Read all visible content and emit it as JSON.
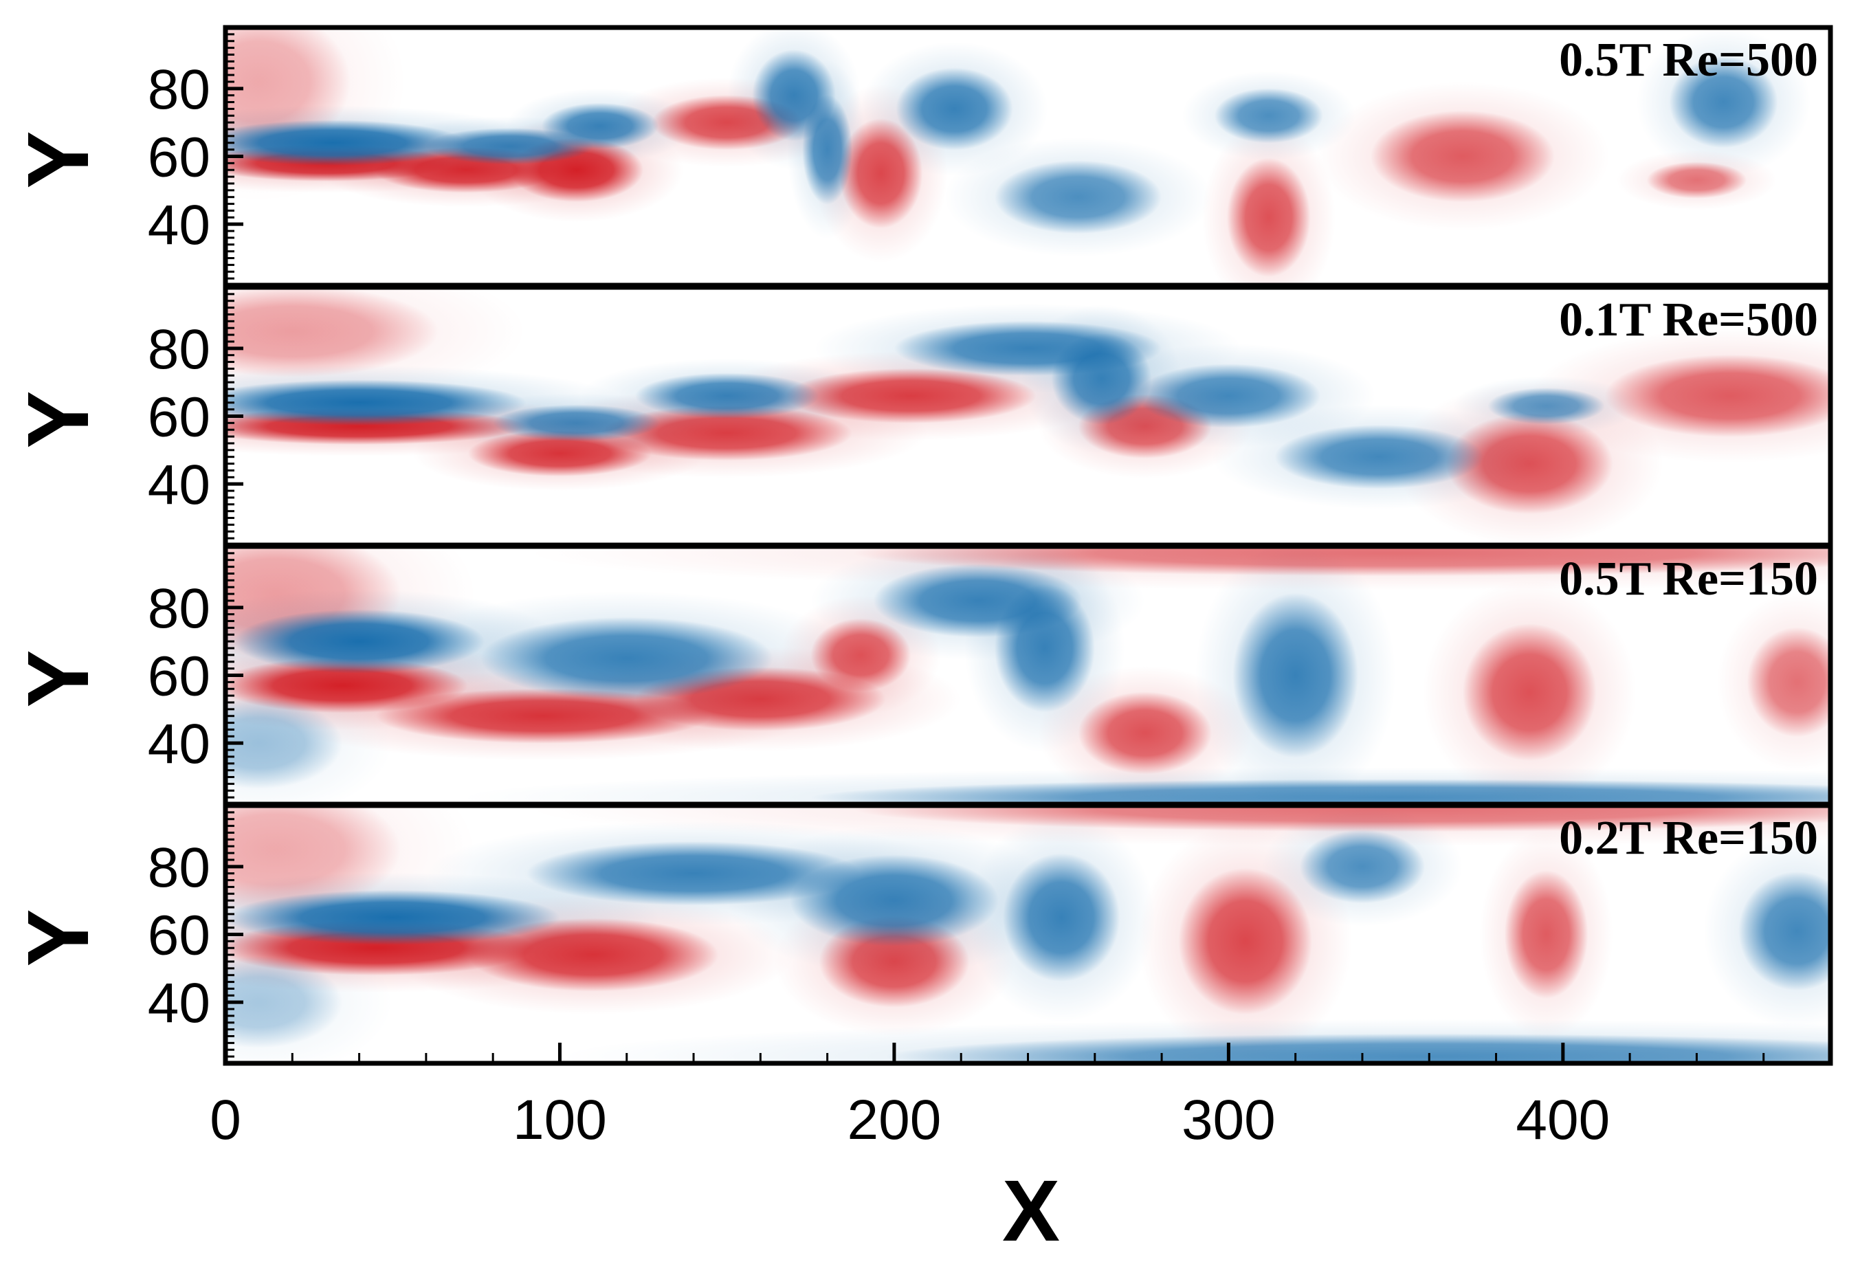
{
  "chart_data": {
    "type": "heatmap",
    "title": "",
    "xlabel": "X",
    "ylabel": "Y",
    "xlim": [
      0,
      480
    ],
    "ylim": [
      22,
      98
    ],
    "x_ticks": [
      0,
      100,
      200,
      300,
      400
    ],
    "y_ticks": [
      40,
      60,
      80
    ],
    "colormap": {
      "negative": "#1a6fae",
      "neutral": "#ffffff",
      "positive": "#d42027"
    },
    "panels": [
      {
        "label": "0.5T Re=500",
        "vortices": [
          {
            "sign": 1,
            "x": 30,
            "y": 58,
            "rx": 30,
            "ry": 4,
            "s": 1.0
          },
          {
            "sign": 1,
            "x": 72,
            "y": 56,
            "rx": 22,
            "ry": 5,
            "s": 0.95
          },
          {
            "sign": 1,
            "x": 105,
            "y": 56,
            "rx": 16,
            "ry": 7,
            "s": 1.0
          },
          {
            "sign": 1,
            "x": 150,
            "y": 70,
            "rx": 18,
            "ry": 6,
            "s": 0.8
          },
          {
            "sign": 1,
            "x": 196,
            "y": 55,
            "rx": 10,
            "ry": 12,
            "s": 0.8
          },
          {
            "sign": 1,
            "x": 312,
            "y": 42,
            "rx": 10,
            "ry": 13,
            "s": 0.75
          },
          {
            "sign": 1,
            "x": 370,
            "y": 60,
            "rx": 22,
            "ry": 10,
            "s": 0.7
          },
          {
            "sign": 1,
            "x": 440,
            "y": 53,
            "rx": 12,
            "ry": 4,
            "s": 0.6
          },
          {
            "sign": 1,
            "x": 10,
            "y": 82,
            "rx": 22,
            "ry": 16,
            "s": 0.35
          },
          {
            "sign": -1,
            "x": 32,
            "y": 64,
            "rx": 32,
            "ry": 5,
            "s": 1.0
          },
          {
            "sign": -1,
            "x": 85,
            "y": 63,
            "rx": 20,
            "ry": 4,
            "s": 0.85
          },
          {
            "sign": -1,
            "x": 112,
            "y": 69,
            "rx": 14,
            "ry": 5,
            "s": 0.85
          },
          {
            "sign": -1,
            "x": 170,
            "y": 78,
            "rx": 10,
            "ry": 10,
            "s": 0.85
          },
          {
            "sign": -1,
            "x": 180,
            "y": 62,
            "rx": 6,
            "ry": 12,
            "s": 0.8
          },
          {
            "sign": -1,
            "x": 218,
            "y": 74,
            "rx": 14,
            "ry": 9,
            "s": 0.85
          },
          {
            "sign": -1,
            "x": 255,
            "y": 48,
            "rx": 20,
            "ry": 8,
            "s": 0.75
          },
          {
            "sign": -1,
            "x": 312,
            "y": 72,
            "rx": 13,
            "ry": 6,
            "s": 0.75
          },
          {
            "sign": -1,
            "x": 448,
            "y": 76,
            "rx": 13,
            "ry": 10,
            "s": 0.8
          }
        ]
      },
      {
        "label": "0.1T Re=500",
        "vortices": [
          {
            "sign": 1,
            "x": 40,
            "y": 57,
            "rx": 40,
            "ry": 4,
            "s": 1.0
          },
          {
            "sign": 1,
            "x": 100,
            "y": 49,
            "rx": 22,
            "ry": 5,
            "s": 0.9
          },
          {
            "sign": 1,
            "x": 150,
            "y": 55,
            "rx": 30,
            "ry": 6,
            "s": 0.85
          },
          {
            "sign": 1,
            "x": 205,
            "y": 66,
            "rx": 30,
            "ry": 6,
            "s": 0.85
          },
          {
            "sign": 1,
            "x": 275,
            "y": 57,
            "rx": 16,
            "ry": 7,
            "s": 0.75
          },
          {
            "sign": 1,
            "x": 390,
            "y": 46,
            "rx": 20,
            "ry": 11,
            "s": 0.75
          },
          {
            "sign": 1,
            "x": 450,
            "y": 66,
            "rx": 30,
            "ry": 9,
            "s": 0.7
          },
          {
            "sign": 1,
            "x": 20,
            "y": 85,
            "rx": 35,
            "ry": 10,
            "s": 0.4
          },
          {
            "sign": -1,
            "x": 40,
            "y": 64,
            "rx": 40,
            "ry": 5,
            "s": 1.0
          },
          {
            "sign": -1,
            "x": 105,
            "y": 58,
            "rx": 20,
            "ry": 4,
            "s": 0.8
          },
          {
            "sign": -1,
            "x": 150,
            "y": 66,
            "rx": 22,
            "ry": 5,
            "s": 0.85
          },
          {
            "sign": -1,
            "x": 240,
            "y": 80,
            "rx": 32,
            "ry": 6,
            "s": 0.85
          },
          {
            "sign": -1,
            "x": 262,
            "y": 71,
            "rx": 12,
            "ry": 10,
            "s": 0.85
          },
          {
            "sign": -1,
            "x": 300,
            "y": 66,
            "rx": 22,
            "ry": 7,
            "s": 0.8
          },
          {
            "sign": -1,
            "x": 345,
            "y": 48,
            "rx": 25,
            "ry": 7,
            "s": 0.8
          },
          {
            "sign": -1,
            "x": 395,
            "y": 63,
            "rx": 14,
            "ry": 4,
            "s": 0.7
          }
        ]
      },
      {
        "label": "0.5T Re=150",
        "vortices": [
          {
            "sign": 1,
            "x": 35,
            "y": 57,
            "rx": 30,
            "ry": 6,
            "s": 1.0
          },
          {
            "sign": 1,
            "x": 95,
            "y": 48,
            "rx": 40,
            "ry": 6,
            "s": 0.9
          },
          {
            "sign": 1,
            "x": 160,
            "y": 53,
            "rx": 30,
            "ry": 7,
            "s": 0.85
          },
          {
            "sign": 1,
            "x": 190,
            "y": 66,
            "rx": 12,
            "ry": 8,
            "s": 0.75
          },
          {
            "sign": 1,
            "x": 275,
            "y": 43,
            "rx": 16,
            "ry": 9,
            "s": 0.75
          },
          {
            "sign": 1,
            "x": 390,
            "y": 55,
            "rx": 16,
            "ry": 15,
            "s": 0.75
          },
          {
            "sign": 1,
            "x": 470,
            "y": 58,
            "rx": 12,
            "ry": 12,
            "s": 0.6
          },
          {
            "sign": 1,
            "x": 350,
            "y": 96,
            "rx": 130,
            "ry": 5,
            "s": 0.6
          },
          {
            "sign": 1,
            "x": 15,
            "y": 84,
            "rx": 30,
            "ry": 14,
            "s": 0.4
          },
          {
            "sign": -1,
            "x": 40,
            "y": 70,
            "rx": 30,
            "ry": 7,
            "s": 1.0
          },
          {
            "sign": -1,
            "x": 120,
            "y": 65,
            "rx": 35,
            "ry": 9,
            "s": 0.85
          },
          {
            "sign": -1,
            "x": 225,
            "y": 82,
            "rx": 25,
            "ry": 8,
            "s": 0.85
          },
          {
            "sign": -1,
            "x": 245,
            "y": 68,
            "rx": 12,
            "ry": 14,
            "s": 0.85
          },
          {
            "sign": -1,
            "x": 320,
            "y": 60,
            "rx": 15,
            "ry": 18,
            "s": 0.85
          },
          {
            "sign": -1,
            "x": 350,
            "y": 24,
            "rx": 140,
            "ry": 4,
            "s": 0.75
          },
          {
            "sign": -1,
            "x": 10,
            "y": 40,
            "rx": 20,
            "ry": 10,
            "s": 0.4
          }
        ]
      },
      {
        "label": "0.2T Re=150",
        "vortices": [
          {
            "sign": 1,
            "x": 45,
            "y": 56,
            "rx": 38,
            "ry": 6,
            "s": 1.0
          },
          {
            "sign": 1,
            "x": 110,
            "y": 54,
            "rx": 30,
            "ry": 8,
            "s": 0.9
          },
          {
            "sign": 1,
            "x": 200,
            "y": 52,
            "rx": 18,
            "ry": 10,
            "s": 0.8
          },
          {
            "sign": 1,
            "x": 305,
            "y": 58,
            "rx": 16,
            "ry": 16,
            "s": 0.8
          },
          {
            "sign": 1,
            "x": 395,
            "y": 60,
            "rx": 10,
            "ry": 14,
            "s": 0.7
          },
          {
            "sign": 1,
            "x": 350,
            "y": 97,
            "rx": 130,
            "ry": 5,
            "s": 0.6
          },
          {
            "sign": 1,
            "x": 15,
            "y": 85,
            "rx": 30,
            "ry": 14,
            "s": 0.35
          },
          {
            "sign": -1,
            "x": 50,
            "y": 65,
            "rx": 40,
            "ry": 6,
            "s": 1.0
          },
          {
            "sign": -1,
            "x": 140,
            "y": 78,
            "rx": 40,
            "ry": 7,
            "s": 0.85
          },
          {
            "sign": -1,
            "x": 200,
            "y": 70,
            "rx": 25,
            "ry": 10,
            "s": 0.85
          },
          {
            "sign": -1,
            "x": 250,
            "y": 65,
            "rx": 14,
            "ry": 14,
            "s": 0.85
          },
          {
            "sign": -1,
            "x": 340,
            "y": 80,
            "rx": 15,
            "ry": 8,
            "s": 0.75
          },
          {
            "sign": -1,
            "x": 470,
            "y": 61,
            "rx": 14,
            "ry": 13,
            "s": 0.8
          },
          {
            "sign": -1,
            "x": 360,
            "y": 24,
            "rx": 130,
            "ry": 5,
            "s": 0.75
          },
          {
            "sign": -1,
            "x": 10,
            "y": 40,
            "rx": 20,
            "ry": 10,
            "s": 0.35
          }
        ]
      }
    ]
  }
}
